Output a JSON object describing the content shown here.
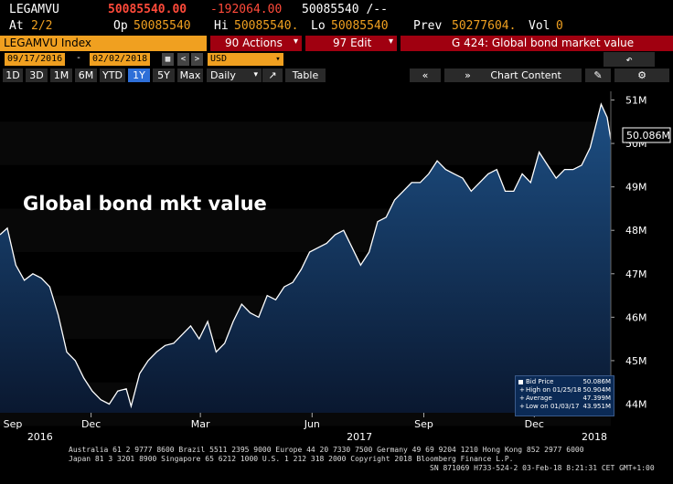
{
  "header": {
    "ticker": "LEGAMVU",
    "last": "50085540.00",
    "change": "-192064.00",
    "bidask": "50085540 /--",
    "at_label": "At",
    "at_value": "2/2",
    "op_label": "Op",
    "op_value": "50085540",
    "hi_label": "Hi",
    "hi_value": "50085540.",
    "lo_label": "Lo",
    "lo_value": "50085540",
    "prev_label": "Prev",
    "prev_value": "50277604.",
    "vol_label": "Vol",
    "vol_value": "0"
  },
  "menubar": {
    "security": "LEGAMVU Index",
    "actions": "90 Actions",
    "edit": "97 Edit",
    "page_title": "G 424: Global bond market value"
  },
  "controls": {
    "start_date": "09/17/2016",
    "end_date": "02/02/2018",
    "currency": "USD",
    "ranges": [
      "1D",
      "3D",
      "1M",
      "6M",
      "YTD",
      "1Y",
      "5Y",
      "Max"
    ],
    "active_range": "1Y",
    "period": "Daily",
    "table": "Table",
    "chart_content": "Chart Content"
  },
  "legend": {
    "bid_label": "Bid Price",
    "bid_value": "50.086M",
    "high_label": "High on 01/25/18",
    "high_value": "50.904M",
    "avg_label": "Average",
    "avg_value": "47.399M",
    "low_label": "Low on 01/03/17",
    "low_value": "43.951M"
  },
  "footer": {
    "line1": "Australia 61 2 9777 8600 Brazil 5511 2395 9000 Europe 44 20 7330 7500 Germany 49 69 9204 1210 Hong Kong 852 2977 6000",
    "line2": "Japan 81 3 3201 8900       Singapore 65 6212 1000      U.S. 1 212 318 2000           Copyright 2018 Bloomberg Finance L.P.",
    "line3": "SN 871069 H733-524-2 03-Feb-18  8:21:31 CET  GMT+1:00"
  },
  "colors": {
    "accent": "#f0a020",
    "negative": "#ff4a3a",
    "menu_red": "#a00010",
    "area_top": "#1d4f84",
    "area_bottom": "#0a1830"
  },
  "chart_data": {
    "type": "area",
    "title": "Global bond mkt value",
    "last_value_label": "50.086M",
    "ylim": [
      43.8,
      51.2
    ],
    "yticks": [
      44,
      45,
      46,
      47,
      48,
      49,
      50,
      51
    ],
    "ytick_labels": [
      "44M",
      "45M",
      "46M",
      "47M",
      "48M",
      "49M",
      "50M",
      "51M"
    ],
    "xticks": [
      {
        "date": "2016-09-15",
        "label": "Sep"
      },
      {
        "date": "2016-12-01",
        "label": "Dec"
      },
      {
        "date": "2017-03-01",
        "label": "Mar"
      },
      {
        "date": "2017-06-01",
        "label": "Jun"
      },
      {
        "date": "2017-09-01",
        "label": "Sep"
      },
      {
        "date": "2017-12-01",
        "label": "Dec"
      }
    ],
    "year_labels": [
      {
        "date": "2016-10-20",
        "label": "2016"
      },
      {
        "date": "2017-07-10",
        "label": "2017"
      },
      {
        "date": "2018-01-20",
        "label": "2018"
      }
    ],
    "xlim": [
      "2016-09-17",
      "2018-02-02"
    ],
    "grid": false,
    "series": [
      {
        "x": [
          "2016-09-17",
          "2016-09-23",
          "2016-09-30",
          "2016-10-07",
          "2016-10-14",
          "2016-10-21",
          "2016-10-28",
          "2016-11-04",
          "2016-11-11",
          "2016-11-18",
          "2016-11-25",
          "2016-12-02",
          "2016-12-09",
          "2016-12-16",
          "2016-12-23",
          "2016-12-30",
          "2017-01-03",
          "2017-01-10",
          "2017-01-17",
          "2017-01-24",
          "2017-01-31",
          "2017-02-07",
          "2017-02-14",
          "2017-02-21",
          "2017-02-28",
          "2017-03-07",
          "2017-03-14",
          "2017-03-21",
          "2017-03-28",
          "2017-04-04",
          "2017-04-11",
          "2017-04-18",
          "2017-04-25",
          "2017-05-02",
          "2017-05-09",
          "2017-05-16",
          "2017-05-23",
          "2017-05-30",
          "2017-06-06",
          "2017-06-13",
          "2017-06-20",
          "2017-06-27",
          "2017-07-04",
          "2017-07-11",
          "2017-07-18",
          "2017-07-25",
          "2017-08-01",
          "2017-08-08",
          "2017-08-15",
          "2017-08-22",
          "2017-08-29",
          "2017-09-05",
          "2017-09-12",
          "2017-09-19",
          "2017-09-26",
          "2017-10-03",
          "2017-10-10",
          "2017-10-17",
          "2017-10-24",
          "2017-10-31",
          "2017-11-07",
          "2017-11-14",
          "2017-11-21",
          "2017-11-28",
          "2017-12-05",
          "2017-12-12",
          "2017-12-19",
          "2017-12-26",
          "2018-01-02",
          "2018-01-09",
          "2018-01-16",
          "2018-01-25",
          "2018-01-30",
          "2018-02-02"
        ],
        "values": [
          47.9,
          48.05,
          47.2,
          46.85,
          47.0,
          46.9,
          46.7,
          46.05,
          45.2,
          45.0,
          44.6,
          44.3,
          44.1,
          44.0,
          44.3,
          44.35,
          43.95,
          44.7,
          45.0,
          45.2,
          45.35,
          45.4,
          45.6,
          45.8,
          45.5,
          45.9,
          45.2,
          45.4,
          45.9,
          46.3,
          46.1,
          46.0,
          46.5,
          46.4,
          46.7,
          46.8,
          47.1,
          47.5,
          47.6,
          47.7,
          47.9,
          48.0,
          47.6,
          47.2,
          47.5,
          48.2,
          48.3,
          48.7,
          48.9,
          49.1,
          49.1,
          49.3,
          49.6,
          49.4,
          49.3,
          49.2,
          48.9,
          49.1,
          49.3,
          49.4,
          48.9,
          48.9,
          49.3,
          49.1,
          49.8,
          49.5,
          49.2,
          49.4,
          49.4,
          49.5,
          49.9,
          50.904,
          50.6,
          50.086
        ]
      }
    ]
  }
}
